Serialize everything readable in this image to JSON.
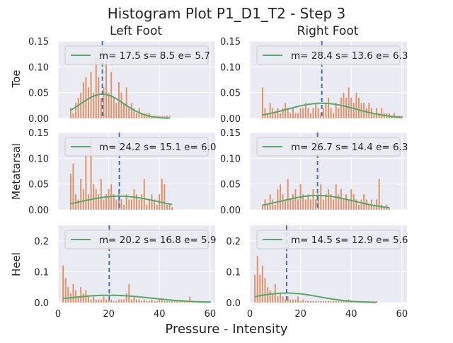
{
  "figure": {
    "title": "Histogram Plot P1_D1_T2 - Step 3",
    "xlabel": "Pressure - Intensity",
    "columns": [
      "Left Foot",
      "Right Foot"
    ],
    "rows": [
      "Toe",
      "Metatarsal",
      "Heel"
    ]
  },
  "colors": {
    "axes_bg": "#eaeaf2",
    "grid": "#ffffff",
    "bar": "#dd8452",
    "curve": "#55a868",
    "mean_line": "#4c72b0",
    "text": "#262626"
  },
  "chart_data": [
    {
      "type": "bar",
      "panel": "Toe - Left Foot",
      "legend": "m= 17.5 s= 8.5 e= 5.7",
      "mean": 17.5,
      "std": 8.5,
      "xlim": [
        0,
        62
      ],
      "ylim": [
        0,
        0.15
      ],
      "xticks": [
        0,
        20,
        40,
        60
      ],
      "yticks": [
        0.0,
        0.05,
        0.1,
        0.15
      ],
      "yticklabels": [
        "0.00",
        "0.05",
        "0.10",
        "0.15"
      ],
      "x": [
        5,
        6,
        7,
        8,
        9,
        10,
        11,
        12,
        13,
        14,
        15,
        16,
        17,
        18,
        19,
        20,
        21,
        22,
        23,
        24,
        25,
        26,
        27,
        28,
        29,
        30,
        31,
        32,
        33,
        34,
        35,
        36,
        37,
        38,
        39,
        40,
        41,
        42,
        43,
        44
      ],
      "values": [
        0.02,
        0.01,
        0.03,
        0.04,
        0.05,
        0.07,
        0.08,
        0.06,
        0.09,
        0.05,
        0.12,
        0.08,
        0.04,
        0.06,
        0.11,
        0.05,
        0.09,
        0.04,
        0.03,
        0.07,
        0.05,
        0.03,
        0.06,
        0.02,
        0.03,
        0.02,
        0.01,
        0.02,
        0.01,
        0.01,
        0.01,
        0.01,
        0.005,
        0.005,
        0.005,
        0.005,
        0.005,
        0.005,
        0.005,
        0.005
      ]
    },
    {
      "type": "bar",
      "panel": "Toe - Right Foot",
      "legend": "m= 28.4 s= 13.6 e= 6.3",
      "mean": 28.4,
      "std": 13.6,
      "xlim": [
        0,
        62
      ],
      "ylim": [
        0,
        0.15
      ],
      "xticks": [
        0,
        20,
        40,
        60
      ],
      "yticks": [
        0.0,
        0.05,
        0.1,
        0.15
      ],
      "yticklabels": [
        "0.00",
        "0.05",
        "0.10",
        "0.15"
      ],
      "x": [
        5,
        6,
        7,
        8,
        9,
        10,
        11,
        12,
        13,
        14,
        15,
        16,
        17,
        18,
        19,
        20,
        21,
        22,
        23,
        24,
        25,
        26,
        27,
        28,
        29,
        30,
        31,
        32,
        33,
        34,
        35,
        36,
        37,
        38,
        39,
        40,
        41,
        42,
        43,
        44,
        45,
        46,
        47,
        48,
        49,
        50,
        51,
        52,
        53,
        54,
        55,
        56,
        57,
        58,
        59,
        60
      ],
      "values": [
        0.06,
        0.02,
        0.01,
        0.03,
        0.02,
        0.01,
        0.02,
        0.01,
        0.02,
        0.03,
        0.02,
        0.01,
        0.02,
        0.01,
        0.01,
        0.02,
        0.02,
        0.03,
        0.02,
        0.01,
        0.02,
        0.03,
        0.02,
        0.01,
        0.02,
        0.03,
        0.04,
        0.02,
        0.01,
        0.03,
        0.02,
        0.04,
        0.05,
        0.04,
        0.06,
        0.04,
        0.03,
        0.05,
        0.04,
        0.03,
        0.03,
        0.02,
        0.03,
        0.02,
        0.01,
        0.02,
        0.01,
        0.02,
        0.01,
        0.01,
        0.01,
        0.005,
        0.01,
        0.005,
        0.005,
        0.005
      ]
    },
    {
      "type": "bar",
      "panel": "Metatarsal - Left Foot",
      "legend": "m= 24.2 s= 15.1 e= 6.0",
      "mean": 24.2,
      "std": 15.1,
      "xlim": [
        0,
        62
      ],
      "ylim": [
        0,
        0.15
      ],
      "xticks": [
        0,
        20,
        40,
        60
      ],
      "yticks": [
        0.0,
        0.05,
        0.1,
        0.15
      ],
      "yticklabels": [
        "0.00",
        "0.05",
        "0.10",
        "0.15"
      ],
      "x": [
        5,
        6,
        7,
        8,
        9,
        10,
        11,
        12,
        13,
        14,
        15,
        16,
        17,
        18,
        19,
        20,
        21,
        22,
        23,
        24,
        25,
        26,
        27,
        28,
        29,
        30,
        31,
        32,
        33,
        34,
        35,
        36,
        37,
        38,
        39,
        40,
        41,
        42,
        43,
        44,
        45
      ],
      "values": [
        0.07,
        0.09,
        0.03,
        0.02,
        0.06,
        0.04,
        0.11,
        0.03,
        0.14,
        0.05,
        0.04,
        0.03,
        0.06,
        0.02,
        0.03,
        0.04,
        0.05,
        0.03,
        0.02,
        0.04,
        0.02,
        0.01,
        0.03,
        0.02,
        0.02,
        0.04,
        0.03,
        0.02,
        0.03,
        0.06,
        0.01,
        0.02,
        0.03,
        0.02,
        0.01,
        0.03,
        0.06,
        0.05,
        0.01,
        0.01,
        0.005
      ]
    },
    {
      "type": "bar",
      "panel": "Metatarsal - Right Foot",
      "legend": "m= 26.7 s= 14.4 e= 6.3",
      "mean": 26.7,
      "std": 14.4,
      "xlim": [
        0,
        62
      ],
      "ylim": [
        0,
        0.15
      ],
      "xticks": [
        0,
        20,
        40,
        60
      ],
      "yticks": [
        0.0,
        0.05,
        0.1,
        0.15
      ],
      "yticklabels": [
        "0.00",
        "0.05",
        "0.10",
        "0.15"
      ],
      "x": [
        5,
        6,
        7,
        8,
        9,
        10,
        11,
        12,
        13,
        14,
        15,
        16,
        17,
        18,
        19,
        20,
        21,
        22,
        23,
        24,
        25,
        26,
        27,
        28,
        29,
        30,
        31,
        32,
        33,
        34,
        35,
        36,
        37,
        38,
        39,
        40,
        41,
        42,
        43,
        44,
        45,
        46,
        47,
        48,
        49,
        50,
        51,
        52,
        53,
        54,
        55
      ],
      "values": [
        0.01,
        0.02,
        0.01,
        0.03,
        0.02,
        0.01,
        0.04,
        0.05,
        0.03,
        0.02,
        0.06,
        0.02,
        0.03,
        0.04,
        0.02,
        0.05,
        0.03,
        0.02,
        0.03,
        0.02,
        0.04,
        0.02,
        0.03,
        0.05,
        0.02,
        0.03,
        0.04,
        0.03,
        0.02,
        0.05,
        0.03,
        0.04,
        0.02,
        0.03,
        0.02,
        0.04,
        0.03,
        0.02,
        0.01,
        0.02,
        0.03,
        0.02,
        0.01,
        0.02,
        0.01,
        0.02,
        0.06,
        0.01,
        0.005,
        0.01,
        0.005
      ]
    },
    {
      "type": "bar",
      "panel": "Heel - Left Foot",
      "legend": "m= 20.2 s= 16.8 e= 5.9",
      "mean": 20.2,
      "std": 16.8,
      "xlim": [
        0,
        62
      ],
      "ylim": [
        0,
        0.25
      ],
      "xticks": [
        0,
        20,
        40,
        60
      ],
      "yticks": [
        0.0,
        0.1,
        0.2
      ],
      "yticklabels": [
        "0.0",
        "0.1",
        "0.2"
      ],
      "x": [
        2,
        3,
        4,
        5,
        6,
        7,
        8,
        9,
        10,
        11,
        12,
        13,
        14,
        15,
        16,
        17,
        18,
        19,
        20,
        21,
        22,
        23,
        24,
        25,
        26,
        27,
        28,
        29,
        30,
        31,
        32,
        33,
        34,
        35,
        36,
        37,
        38,
        39,
        40,
        41,
        42,
        43,
        44,
        45,
        46,
        47,
        48,
        49,
        50,
        51,
        52,
        53,
        54,
        55,
        56,
        57,
        58,
        59,
        60
      ],
      "values": [
        0.12,
        0.08,
        0.05,
        0.03,
        0.06,
        0.04,
        0.02,
        0.05,
        0.03,
        0.04,
        0.02,
        0.01,
        0.02,
        0.01,
        0.01,
        0.01,
        0.02,
        0.01,
        0.01,
        0.01,
        0.005,
        0.005,
        0.01,
        0.01,
        0.01,
        0.03,
        0.06,
        0.01,
        0.02,
        0.01,
        0.01,
        0.005,
        0.01,
        0.005,
        0.005,
        0.01,
        0.005,
        0.005,
        0.01,
        0.01,
        0.005,
        0.005,
        0.005,
        0.005,
        0.005,
        0.005,
        0.005,
        0.005,
        0.005,
        0.005,
        0.02,
        0.005,
        0.005,
        0.005,
        0.005,
        0.005,
        0.005,
        0.005,
        0.005
      ]
    },
    {
      "type": "bar",
      "panel": "Heel - Right Foot",
      "legend": "m= 14.5 s= 12.9 e= 5.6",
      "mean": 14.5,
      "std": 12.9,
      "xlim": [
        0,
        62
      ],
      "ylim": [
        0,
        0.25
      ],
      "xticks": [
        0,
        20,
        40,
        60
      ],
      "yticks": [
        0.0,
        0.1,
        0.2
      ],
      "yticklabels": [
        "0.0",
        "0.1",
        "0.2"
      ],
      "x": [
        2,
        3,
        4,
        5,
        6,
        7,
        8,
        9,
        10,
        11,
        12,
        13,
        14,
        15,
        16,
        17,
        18,
        19,
        20,
        21,
        22,
        23,
        24,
        25,
        26,
        27,
        28,
        29,
        30,
        31,
        32,
        33,
        34,
        35,
        36,
        37,
        38,
        39,
        40,
        41,
        42,
        43,
        44,
        45,
        46,
        47,
        48,
        49,
        50
      ],
      "values": [
        0.09,
        0.15,
        0.09,
        0.12,
        0.08,
        0.05,
        0.04,
        0.03,
        0.06,
        0.02,
        0.03,
        0.02,
        0.01,
        0.02,
        0.01,
        0.01,
        0.01,
        0.02,
        0.005,
        0.01,
        0.005,
        0.005,
        0.005,
        0.005,
        0.005,
        0.005,
        0.005,
        0.005,
        0.005,
        0.005,
        0.005,
        0.005,
        0.005,
        0.005,
        0.005,
        0.005,
        0.005,
        0.01,
        0.005,
        0.005,
        0.005,
        0.005,
        0.005,
        0.005,
        0.005,
        0.005,
        0.005,
        0.005,
        0.005
      ]
    }
  ]
}
